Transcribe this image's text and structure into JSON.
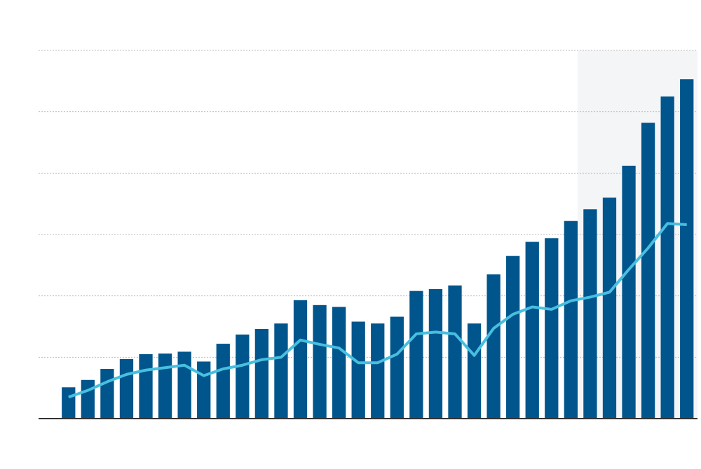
{
  "chart_data": {
    "type": "combo",
    "categories": [
      null,
      null,
      null,
      null,
      null,
      null,
      null,
      null,
      null,
      null,
      null,
      null,
      null,
      null,
      null,
      null,
      null,
      null,
      null,
      null,
      null,
      null,
      null,
      null,
      null,
      null,
      null,
      null,
      null,
      null,
      null,
      null,
      null
    ],
    "series": [
      {
        "type": "bar",
        "color": "#00558c",
        "values": [
          0.51,
          0.63,
          0.81,
          0.97,
          1.05,
          1.06,
          1.09,
          0.93,
          1.22,
          1.37,
          1.46,
          1.55,
          1.93,
          1.85,
          1.82,
          1.58,
          1.55,
          1.66,
          2.08,
          2.11,
          2.17,
          1.55,
          2.35,
          2.65,
          2.88,
          2.94,
          3.22,
          3.41,
          3.6,
          4.12,
          4.82,
          5.25,
          5.53
        ]
      },
      {
        "type": "line",
        "color": "#47bfe0",
        "values": [
          0.35,
          0.46,
          0.6,
          0.72,
          0.79,
          0.83,
          0.87,
          0.7,
          0.81,
          0.87,
          0.96,
          1.0,
          1.28,
          1.21,
          1.15,
          0.91,
          0.91,
          1.05,
          1.38,
          1.41,
          1.38,
          1.03,
          1.47,
          1.7,
          1.82,
          1.78,
          1.92,
          1.98,
          2.06,
          2.43,
          2.78,
          3.18,
          3.16
        ]
      }
    ],
    "ylim": [
      0,
      6
    ],
    "yticks": [
      0,
      1,
      2,
      3,
      4,
      5,
      6
    ],
    "grid": true
  }
}
